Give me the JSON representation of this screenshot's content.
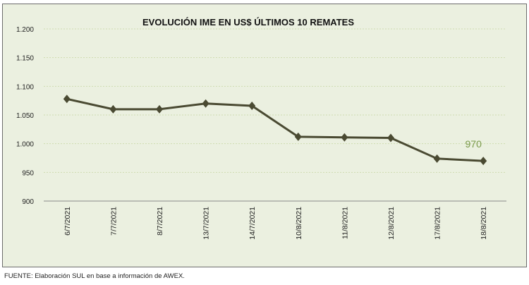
{
  "chart_data": {
    "type": "line",
    "title": "EVOLUCIÓN IME EN US$ ÚLTIMOS 10 REMATES",
    "categories": [
      "6/7/2021",
      "7/7/2021",
      "8/7/2021",
      "13/7/2021",
      "14/7/2021",
      "10/8/2021",
      "11/8/2021",
      "12/8/2021",
      "17/8/2021",
      "18/8/2021"
    ],
    "series": [
      {
        "values": [
          1078,
          1060,
          1060,
          1070,
          1066,
          1012,
          1011,
          1010,
          974,
          970
        ]
      }
    ],
    "ylim": [
      900,
      1200
    ],
    "yticks": [
      900,
      950,
      1000,
      1050,
      1100,
      1150,
      1200
    ],
    "ytick_labels": [
      "900",
      "950",
      "1.000",
      "1.050",
      "1.100",
      "1.150",
      "1.200"
    ],
    "data_labels": [
      {
        "index": 9,
        "text": "970"
      }
    ],
    "grid": true,
    "colors": {
      "line": "#4a4a32",
      "label": "#7a9a4a",
      "grid": "#cfdcb0",
      "background": "#ebf0e0"
    }
  },
  "source": "FUENTE: Elaboración SUL en base a información de AWEX."
}
